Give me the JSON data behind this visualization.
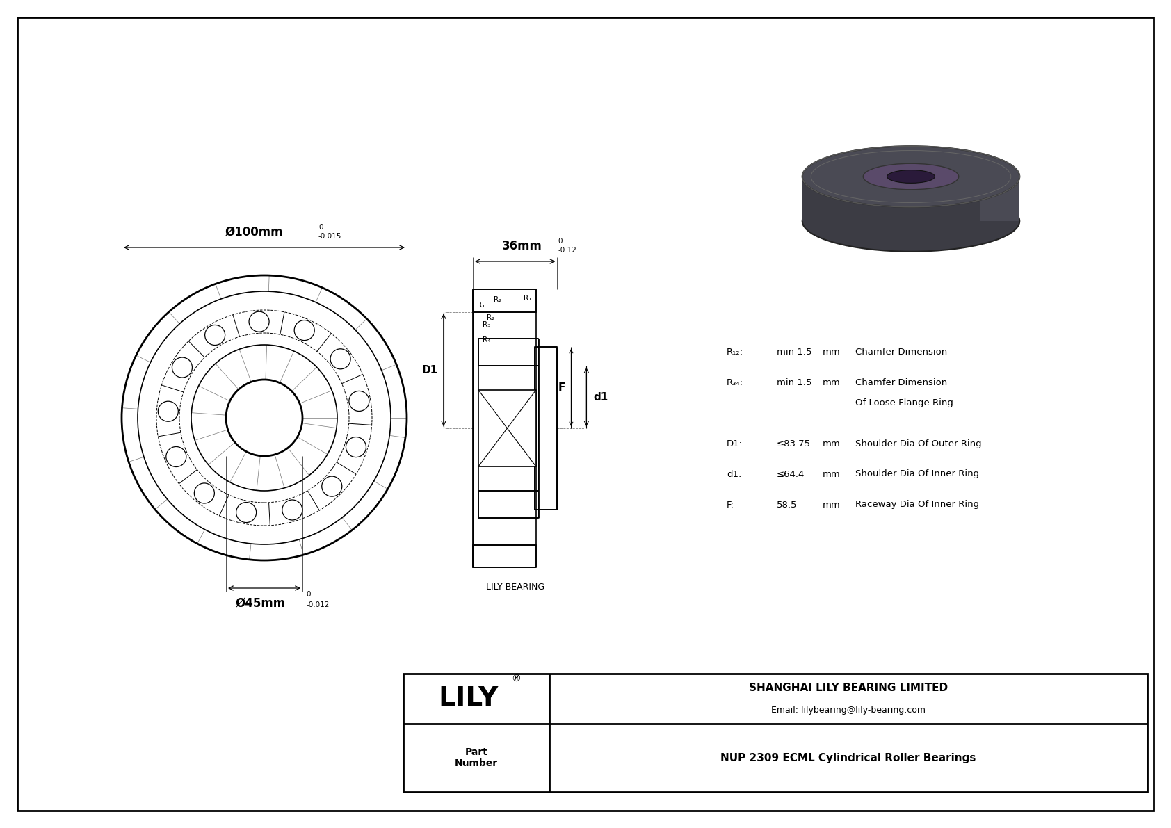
{
  "bg_color": "#ffffff",
  "line_color": "#000000",
  "part_number": "NUP 2309 ECML Cylindrical Roller Bearings",
  "company": "SHANGHAI LILY BEARING LIMITED",
  "email": "Email: lilybearing@lily-bearing.com",
  "lily_text": "LILY",
  "part_label": "Part\nNumber",
  "watermark": "LILY BEARING",
  "dim_outer": "Ø100mm",
  "dim_outer_tol_up": "0",
  "dim_outer_tol_dn": "-0.015",
  "dim_inner": "Ø45mm",
  "dim_inner_tol_up": "0",
  "dim_inner_tol_dn": "-0.012",
  "dim_width": "36mm",
  "dim_width_tol_up": "0",
  "dim_width_tol_dn": "-0.12",
  "R12_label": "R₁₂:",
  "R12_val": "min 1.5",
  "R12_unit": "mm",
  "R12_desc": "Chamfer Dimension",
  "R34_label": "R₃₄:",
  "R34_val": "min 1.5",
  "R34_unit": "mm",
  "R34_desc": "Chamfer Dimension",
  "R34_desc2": "Of Loose Flange Ring",
  "D1_label": "D1:",
  "D1_val": "≤83.75",
  "D1_unit": "mm",
  "D1_desc": "Shoulder Dia Of Outer Ring",
  "d1_label": "d1:",
  "d1_val": "≤64.4",
  "d1_unit": "mm",
  "d1_desc": "Shoulder Dia Of Inner Ring",
  "F_label": "F:",
  "F_val": "58.5",
  "F_unit": "mm",
  "F_desc": "Raceway Dia Of Inner Ring"
}
